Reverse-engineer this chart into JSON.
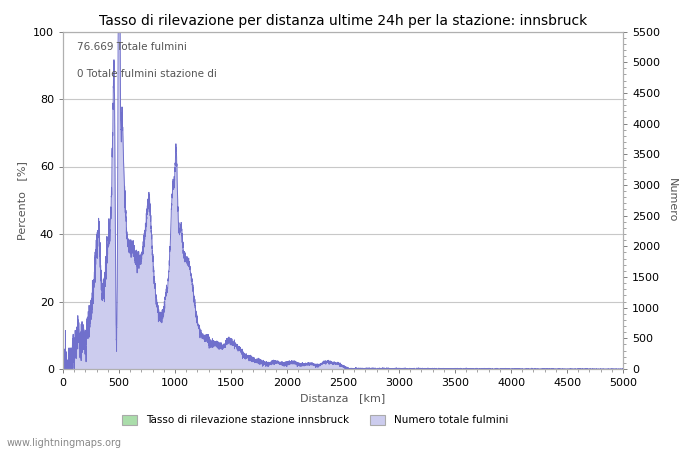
{
  "title": "Tasso di rilevazione per distanza ultime 24h per la stazione: innsbruck",
  "xlabel": "Distanza   [km]",
  "ylabel_left": "Percento   [%]",
  "ylabel_right": "Numero",
  "annotation_line1": "76.669 Totale fulmini",
  "annotation_line2": "0 Totale fulmini stazione di",
  "xlim": [
    0,
    5000
  ],
  "ylim_left": [
    0,
    100
  ],
  "ylim_right": [
    0,
    5500
  ],
  "xticks": [
    0,
    500,
    1000,
    1500,
    2000,
    2500,
    3000,
    3500,
    4000,
    4500,
    5000
  ],
  "yticks_left": [
    0,
    20,
    40,
    60,
    80,
    100
  ],
  "yticks_right": [
    0,
    500,
    1000,
    1500,
    2000,
    2500,
    3000,
    3500,
    4000,
    4500,
    5000,
    5500
  ],
  "legend_label_green": "Tasso di rilevazione stazione innsbruck",
  "legend_label_blue": "Numero totale fulmini",
  "watermark": "www.lightningmaps.org",
  "background_color": "#ffffff",
  "plot_bg_color": "#ffffff",
  "grid_color": "#c8c8c8",
  "line_color": "#7070cc",
  "fill_color_blue": "#ccccee",
  "fill_color_green": "#aaddaa",
  "title_fontsize": 10,
  "axis_fontsize": 8,
  "tick_fontsize": 8,
  "watermark_fontsize": 7
}
